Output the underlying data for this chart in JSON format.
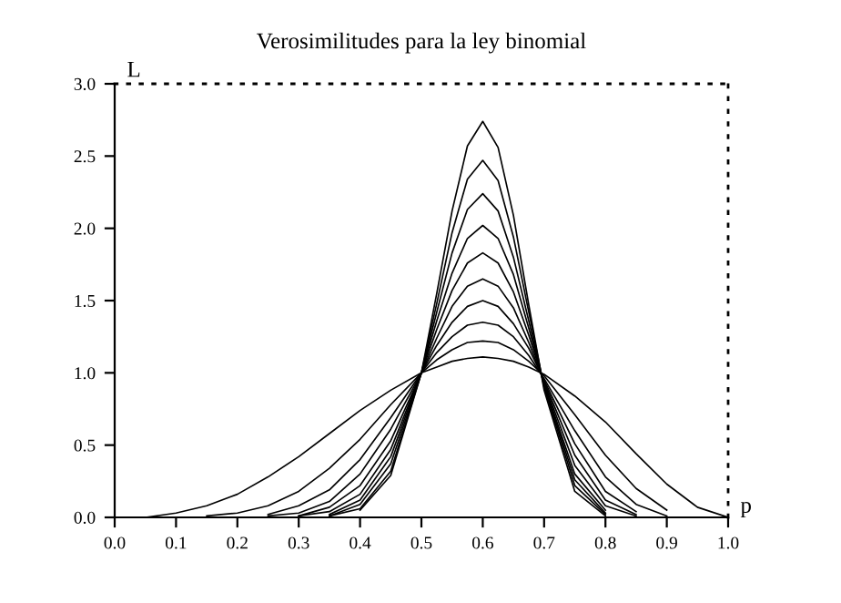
{
  "chart_data": {
    "type": "line",
    "title": "Verosimilitudes para la ley binomial",
    "xlabel": "p",
    "ylabel": "L",
    "x": [
      0,
      0.05,
      0.1,
      0.15,
      0.2,
      0.25,
      0.3,
      0.35,
      0.4,
      0.45,
      0.5,
      0.525,
      0.55,
      0.575,
      0.6,
      0.625,
      0.65,
      0.675,
      0.7,
      0.75,
      0.8,
      0.85,
      0.9,
      0.95,
      1.0
    ],
    "series": [
      {
        "color": "#000000",
        "values": [
          0,
          0,
          0.03,
          0.08,
          0.16,
          0.28,
          0.42,
          0.58,
          0.74,
          0.88,
          1,
          1.04,
          1.08,
          1.1,
          1.11,
          1.1,
          1.08,
          1.04,
          0.99,
          0.84,
          0.66,
          0.44,
          0.23,
          0.07,
          0
        ]
      },
      {
        "color": "#000000",
        "values": [
          null,
          null,
          null,
          0.01,
          0.03,
          0.08,
          0.18,
          0.34,
          0.54,
          0.78,
          1,
          1.09,
          1.16,
          1.21,
          1.22,
          1.21,
          1.16,
          1.08,
          0.98,
          0.71,
          0.43,
          0.2,
          0.05,
          null,
          null
        ]
      },
      {
        "color": "#000000",
        "values": [
          null,
          null,
          null,
          null,
          null,
          0.02,
          0.08,
          0.19,
          0.4,
          0.69,
          1,
          1.14,
          1.25,
          1.33,
          1.35,
          1.33,
          1.25,
          1.12,
          0.96,
          0.6,
          0.28,
          0.09,
          0.01,
          null,
          null
        ]
      },
      {
        "color": "#000000",
        "values": [
          null,
          null,
          null,
          null,
          null,
          0.01,
          0.03,
          0.11,
          0.3,
          0.61,
          1,
          1.19,
          1.35,
          1.46,
          1.5,
          1.46,
          1.34,
          1.17,
          0.95,
          0.51,
          0.18,
          0.04,
          null,
          null,
          null
        ]
      },
      {
        "color": "#000000",
        "values": [
          null,
          null,
          null,
          null,
          null,
          null,
          0.01,
          0.07,
          0.22,
          0.53,
          1,
          1.24,
          1.46,
          1.6,
          1.65,
          1.6,
          1.45,
          1.21,
          0.94,
          0.43,
          0.12,
          0.02,
          null,
          null,
          null
        ]
      },
      {
        "color": "#000000",
        "values": [
          null,
          null,
          null,
          null,
          null,
          null,
          0.01,
          0.04,
          0.16,
          0.47,
          1,
          1.3,
          1.57,
          1.76,
          1.83,
          1.76,
          1.56,
          1.26,
          0.93,
          0.36,
          0.08,
          0.01,
          null,
          null,
          null
        ]
      },
      {
        "color": "#000000",
        "values": [
          null,
          null,
          null,
          null,
          null,
          null,
          null,
          0.02,
          0.12,
          0.42,
          1,
          1.36,
          1.69,
          1.93,
          2.02,
          1.93,
          1.68,
          1.31,
          0.92,
          0.3,
          0.05,
          null,
          null,
          null,
          null
        ]
      },
      {
        "color": "#000000",
        "values": [
          null,
          null,
          null,
          null,
          null,
          null,
          null,
          0.01,
          0.09,
          0.37,
          1,
          1.42,
          1.83,
          2.13,
          2.24,
          2.12,
          1.8,
          1.36,
          0.91,
          0.26,
          0.03,
          null,
          null,
          null,
          null
        ]
      },
      {
        "color": "#000000",
        "values": [
          null,
          null,
          null,
          null,
          null,
          null,
          null,
          0.01,
          0.06,
          0.32,
          1,
          1.48,
          1.97,
          2.34,
          2.47,
          2.33,
          1.94,
          1.42,
          0.9,
          0.22,
          0.02,
          null,
          null,
          null,
          null
        ]
      },
      {
        "color": "#000000",
        "values": [
          null,
          null,
          null,
          null,
          null,
          null,
          null,
          null,
          0.05,
          0.29,
          1,
          1.55,
          2.12,
          2.57,
          2.74,
          2.56,
          2.09,
          1.47,
          0.88,
          0.18,
          0.01,
          null,
          null,
          null,
          null
        ]
      }
    ],
    "xlim": [
      0,
      1
    ],
    "ylim": [
      0,
      3
    ],
    "xticks": [
      {
        "value": 0,
        "label": "0.0"
      },
      0.1,
      0.2,
      0.3,
      0.4,
      0.5,
      0.6,
      0.7,
      0.8,
      0.9,
      {
        "value": 1,
        "label": "1.0"
      }
    ],
    "yticks": [
      {
        "value": 0,
        "label": "0.0"
      },
      0.5,
      {
        "value": 1,
        "label": "1.0"
      },
      1.5,
      {
        "value": 2,
        "label": "2.0"
      },
      2.5,
      {
        "value": 3,
        "label": "3.0"
      }
    ],
    "grid": false,
    "legend": false,
    "marker": "none",
    "line_style": "solid"
  }
}
